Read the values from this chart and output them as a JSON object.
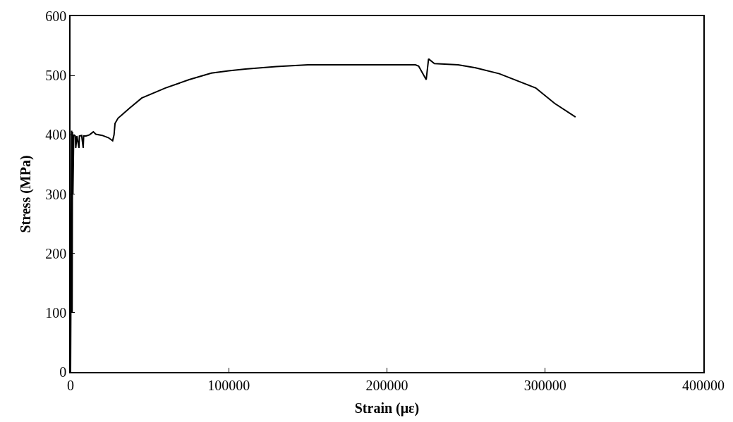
{
  "chart_data": {
    "type": "line",
    "xlabel": "Strain (με)",
    "ylabel": "Stress (MPa)",
    "x": [
      0,
      700,
      1000,
      1200,
      1500,
      2000,
      3000,
      3300,
      4000,
      5300,
      5600,
      7000,
      8000,
      8300,
      9800,
      12000,
      14400,
      16000,
      20000,
      24000,
      26600,
      27500,
      28100,
      30000,
      33000,
      37300,
      45000,
      60000,
      75000,
      89000,
      100000,
      110500,
      130000,
      150000,
      180000,
      200000,
      218000,
      220000,
      224800,
      226300,
      230000,
      245000,
      256000,
      271000,
      294000,
      306000,
      319200
    ],
    "series": [
      {
        "color": "#000000",
        "values": [
          0,
          407,
          100,
          405,
          300,
          400,
          398,
          378,
          398,
          378,
          398,
          399,
          378,
          398,
          398,
          400,
          405,
          401,
          399,
          395,
          390,
          400,
          419,
          428,
          435,
          445,
          462,
          479,
          493,
          504,
          508,
          511,
          515,
          518,
          518,
          518,
          518,
          516,
          493,
          528,
          520,
          518,
          513,
          503,
          479,
          453,
          430
        ]
      }
    ],
    "xlim": [
      0,
      400000
    ],
    "xticks": [
      0,
      100000,
      200000,
      300000,
      400000
    ],
    "ylim": [
      0,
      600
    ],
    "yticks": [
      0,
      100,
      200,
      300,
      400,
      500,
      600
    ]
  }
}
